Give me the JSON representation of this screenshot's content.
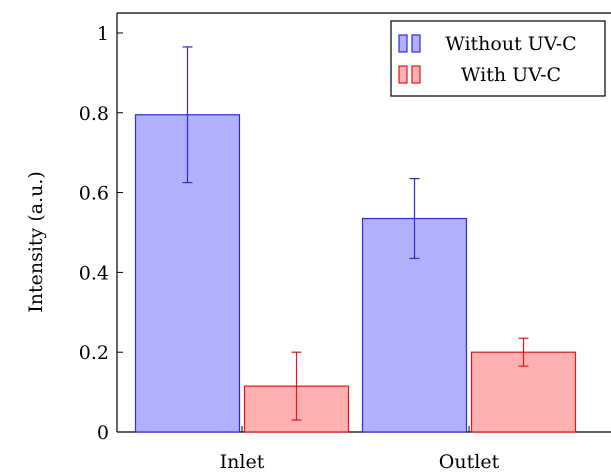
{
  "chart_data": {
    "type": "bar",
    "title": "",
    "xlabel": "",
    "ylabel": "Intensity (a.u.)",
    "ylim": [
      0,
      1.05
    ],
    "yticks": [
      0,
      0.2,
      0.4,
      0.6,
      0.8,
      1
    ],
    "ytick_labels": [
      "0",
      "0.2",
      "0.4",
      "0.6",
      "0.8",
      "1"
    ],
    "categories": [
      "Inlet",
      "Outlet"
    ],
    "series": [
      {
        "name": "Without UV-C",
        "values": [
          0.795,
          0.535
        ],
        "error_low": [
          0.625,
          0.435
        ],
        "error_high": [
          0.965,
          0.635
        ],
        "fill": "#b0b0ff",
        "stroke": "#2d2dd6"
      },
      {
        "name": "With UV-C",
        "values": [
          0.115,
          0.2
        ],
        "error_low": [
          0.03,
          0.165
        ],
        "error_high": [
          0.2,
          0.235
        ],
        "fill": "#ffb0b0",
        "stroke": "#e01818"
      }
    ],
    "legend_position": "top-right",
    "grid": false
  }
}
